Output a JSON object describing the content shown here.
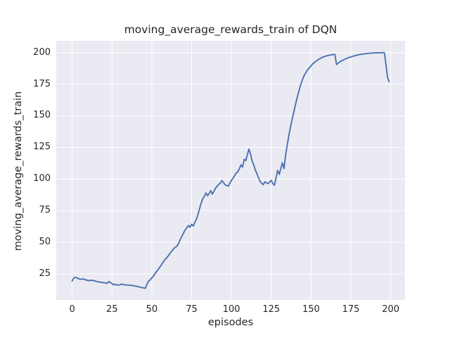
{
  "chart_data": {
    "type": "line",
    "title": "moving_average_rewards_train of DQN",
    "xlabel": "episodes",
    "ylabel": "moving_average_rewards_train",
    "xticks": [
      0,
      25,
      50,
      75,
      100,
      125,
      150,
      175,
      200
    ],
    "yticks": [
      25,
      50,
      75,
      100,
      125,
      150,
      175,
      200
    ],
    "xlim": [
      -10,
      209
    ],
    "ylim": [
      4.3,
      209.3
    ],
    "grid": true,
    "legend": "none",
    "colors": {
      "line": "#4c72b0",
      "axes_background": "#eaeaf2",
      "grid": "#ffffff",
      "figure_background": "#ffffff",
      "text": "#262626"
    },
    "series": [
      {
        "name": "moving_average_rewards_train",
        "points": [
          [
            0,
            19.3
          ],
          [
            1,
            21.6
          ],
          [
            2,
            22.3
          ],
          [
            3,
            21.8
          ],
          [
            5,
            20.6
          ],
          [
            7,
            20.9
          ],
          [
            9,
            20.0
          ],
          [
            11,
            19.6
          ],
          [
            13,
            19.9
          ],
          [
            15,
            19.0
          ],
          [
            17,
            18.5
          ],
          [
            19,
            18.1
          ],
          [
            21,
            17.7
          ],
          [
            22,
            17.5
          ],
          [
            23,
            18.9
          ],
          [
            25,
            17.3
          ],
          [
            26,
            16.2
          ],
          [
            27,
            16.8
          ],
          [
            28,
            16.1
          ],
          [
            30,
            16.2
          ],
          [
            31,
            16.9
          ],
          [
            33,
            16.3
          ],
          [
            35,
            16.1
          ],
          [
            37,
            15.9
          ],
          [
            39,
            15.4
          ],
          [
            41,
            15.0
          ],
          [
            43,
            14.3
          ],
          [
            45,
            13.8
          ],
          [
            46,
            13.6
          ],
          [
            47,
            16.8
          ],
          [
            48,
            19.4
          ],
          [
            49,
            20.1
          ],
          [
            50,
            21.8
          ],
          [
            51,
            23.2
          ],
          [
            52,
            25.0
          ],
          [
            53,
            26.8
          ],
          [
            54,
            28.5
          ],
          [
            55,
            30.2
          ],
          [
            56,
            32.0
          ],
          [
            57,
            34.0
          ],
          [
            58,
            35.8
          ],
          [
            59,
            37.2
          ],
          [
            60,
            38.6
          ],
          [
            61,
            40.4
          ],
          [
            62,
            42.2
          ],
          [
            63,
            43.6
          ],
          [
            64,
            45.2
          ],
          [
            65,
            46.2
          ],
          [
            66,
            47.2
          ],
          [
            67,
            49.5
          ],
          [
            68,
            52.5
          ],
          [
            69,
            55.0
          ],
          [
            70,
            57.5
          ],
          [
            71,
            59.8
          ],
          [
            72,
            61.5
          ],
          [
            73,
            63.2
          ],
          [
            74,
            61.8
          ],
          [
            75,
            64.2
          ],
          [
            76,
            62.8
          ],
          [
            77,
            65.5
          ],
          [
            78,
            68.2
          ],
          [
            79,
            72.0
          ],
          [
            80,
            76.5
          ],
          [
            81,
            81.0
          ],
          [
            82,
            84.5
          ],
          [
            83,
            86.2
          ],
          [
            84,
            89.0
          ],
          [
            85,
            86.8
          ],
          [
            86,
            88.5
          ],
          [
            87,
            90.8
          ],
          [
            88,
            88.0
          ],
          [
            89,
            90.2
          ],
          [
            90,
            92.8
          ],
          [
            91,
            94.2
          ],
          [
            92,
            95.8
          ],
          [
            93,
            96.6
          ],
          [
            94,
            98.8
          ],
          [
            95,
            97.2
          ],
          [
            96,
            95.4
          ],
          [
            97,
            94.9
          ],
          [
            98,
            94.4
          ],
          [
            99,
            96.6
          ],
          [
            100,
            98.9
          ],
          [
            101,
            100.6
          ],
          [
            102,
            102.6
          ],
          [
            103,
            104.8
          ],
          [
            104,
            105.6
          ],
          [
            105,
            108.2
          ],
          [
            106,
            111.2
          ],
          [
            107,
            109.4
          ],
          [
            108,
            115.6
          ],
          [
            109,
            114.5
          ],
          [
            110,
            119.2
          ],
          [
            111,
            123.6
          ],
          [
            112,
            119.8
          ],
          [
            113,
            114.2
          ],
          [
            114,
            111.4
          ],
          [
            115,
            107.2
          ],
          [
            116,
            104.2
          ],
          [
            117,
            101.2
          ],
          [
            118,
            98.2
          ],
          [
            119,
            96.6
          ],
          [
            120,
            95.6
          ],
          [
            121,
            97.8
          ],
          [
            122,
            96.9
          ],
          [
            123,
            96.3
          ],
          [
            124,
            97.6
          ],
          [
            125,
            98.9
          ],
          [
            126,
            96.3
          ],
          [
            127,
            95.1
          ],
          [
            128,
            100.6
          ],
          [
            129,
            106.8
          ],
          [
            130,
            103.6
          ],
          [
            131,
            108.2
          ],
          [
            132,
            112.8
          ],
          [
            133,
            108.2
          ],
          [
            134,
            118.5
          ],
          [
            135,
            126.5
          ],
          [
            136,
            134.0
          ],
          [
            137,
            140.5
          ],
          [
            138,
            146.5
          ],
          [
            139,
            152.0
          ],
          [
            140,
            157.5
          ],
          [
            141,
            163.0
          ],
          [
            142,
            168.0
          ],
          [
            143,
            172.5
          ],
          [
            144,
            176.5
          ],
          [
            145,
            180.0
          ],
          [
            146,
            182.6
          ],
          [
            147,
            184.7
          ],
          [
            148,
            186.6
          ],
          [
            149,
            188.1
          ],
          [
            150,
            189.6
          ],
          [
            151,
            191.0
          ],
          [
            152,
            192.1
          ],
          [
            153,
            193.1
          ],
          [
            154,
            194.0
          ],
          [
            155,
            194.8
          ],
          [
            156,
            195.5
          ],
          [
            157,
            196.2
          ],
          [
            158,
            196.7
          ],
          [
            159,
            197.1
          ],
          [
            160,
            197.5
          ],
          [
            161,
            197.8
          ],
          [
            162,
            198.1
          ],
          [
            163,
            198.3
          ],
          [
            164,
            198.5
          ],
          [
            165,
            198.6
          ],
          [
            166,
            190.5
          ],
          [
            167,
            191.6
          ],
          [
            168,
            192.6
          ],
          [
            169,
            193.3
          ],
          [
            170,
            194.0
          ],
          [
            171,
            194.6
          ],
          [
            172,
            195.2
          ],
          [
            173,
            195.7
          ],
          [
            174,
            196.2
          ],
          [
            175,
            196.6
          ],
          [
            176,
            197.0
          ],
          [
            177,
            197.4
          ],
          [
            178,
            197.7
          ],
          [
            179,
            198.0
          ],
          [
            180,
            198.3
          ],
          [
            181,
            198.5
          ],
          [
            182,
            198.7
          ],
          [
            183,
            198.9
          ],
          [
            184,
            199.1
          ],
          [
            185,
            199.3
          ],
          [
            186,
            199.4
          ],
          [
            187,
            199.5
          ],
          [
            188,
            199.6
          ],
          [
            189,
            199.7
          ],
          [
            190,
            199.8
          ],
          [
            191,
            199.8
          ],
          [
            192,
            199.9
          ],
          [
            193,
            199.9
          ],
          [
            194,
            199.9
          ],
          [
            195,
            200.0
          ],
          [
            196,
            200.0
          ],
          [
            197,
            191.0
          ],
          [
            198,
            180.5
          ],
          [
            199,
            177.0
          ]
        ]
      }
    ]
  }
}
